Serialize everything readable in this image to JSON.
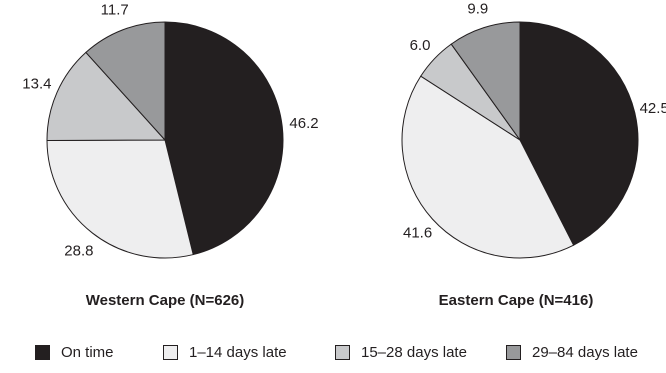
{
  "chart_data": [
    {
      "type": "pie",
      "title": "Western Cape (N=626)",
      "categories": [
        "On time",
        "1–14 days late",
        "15–28 days late",
        "29–84 days late"
      ],
      "values": [
        46.2,
        28.8,
        13.4,
        11.7
      ],
      "labels": [
        "46.2",
        "28.8",
        "13.4",
        "11.7"
      ]
    },
    {
      "type": "pie",
      "title": "Eastern Cape (N=416)",
      "categories": [
        "On time",
        "1–14 days late",
        "15–28 days late",
        "29–84 days late"
      ],
      "values": [
        42.5,
        41.6,
        6.0,
        9.9
      ],
      "labels": [
        "42.5",
        "41.6",
        "6.0",
        "9.9"
      ]
    }
  ],
  "legend": {
    "placement": "bottom",
    "items": [
      {
        "label": "On time",
        "color": "#231f20"
      },
      {
        "label": "1–14 days late",
        "color": "#eeeeef"
      },
      {
        "label": "15–28 days late",
        "color": "#c8c9cb"
      },
      {
        "label": "29–84 days late",
        "color": "#98999b"
      }
    ]
  }
}
